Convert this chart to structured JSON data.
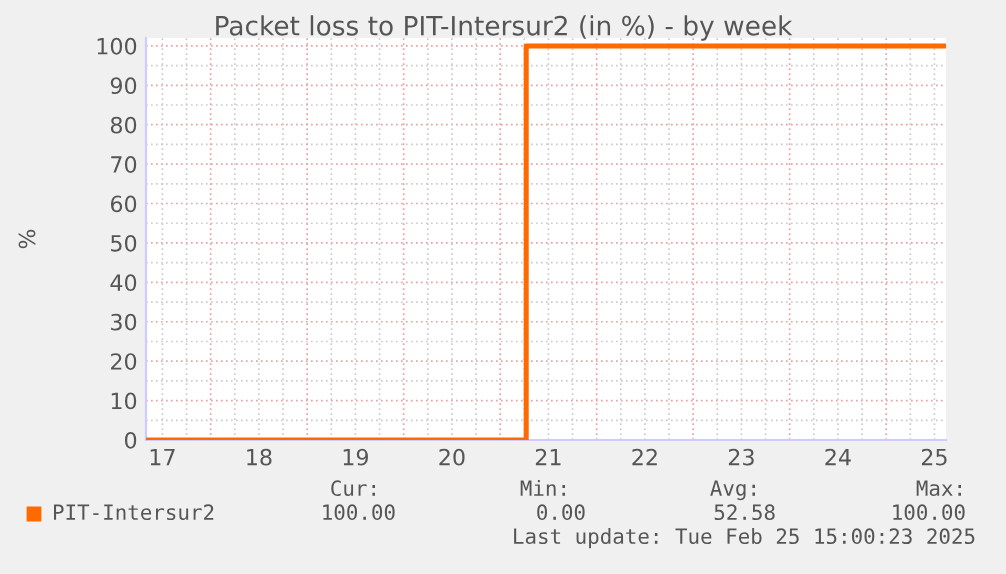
{
  "chart_data": {
    "type": "step",
    "title": "Packet loss to PIT-Intersur2 (in %) - by week",
    "ylabel": "%",
    "x": [
      16.83,
      20.77,
      25.12
    ],
    "series": [
      {
        "name": "PIT-Intersur2",
        "color": "#ff6a00",
        "values": [
          0,
          100,
          100
        ]
      }
    ],
    "xlim": [
      16.83,
      25.12
    ],
    "xticks": [
      17,
      18,
      19,
      20,
      21,
      22,
      23,
      24,
      25
    ],
    "ylim": [
      0,
      102
    ],
    "yticks": [
      0,
      10,
      20,
      30,
      40,
      50,
      60,
      70,
      80,
      90,
      100
    ],
    "grid": true,
    "legend": "bottom",
    "annotations": [
      "Cur:",
      "Min:",
      "Avg:",
      "Max:",
      "100.00",
      "0.00",
      "52.58",
      "100.00",
      "Last update: Tue Feb 25 15:00:23 2025"
    ]
  }
}
